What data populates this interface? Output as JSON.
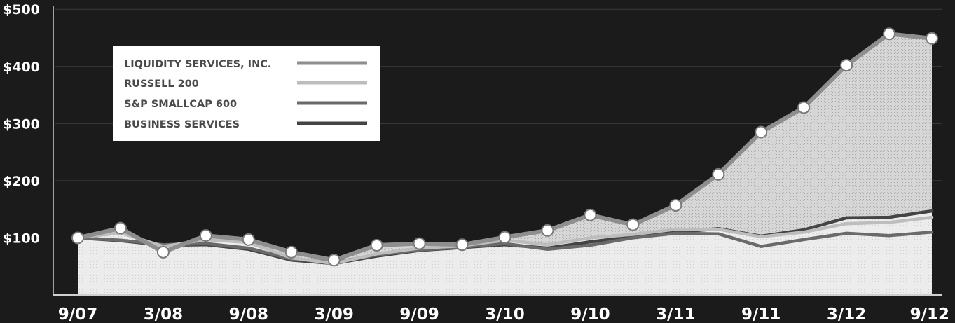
{
  "chart_data": {
    "type": "line",
    "x": [
      "9/07",
      "12/07",
      "3/08",
      "6/08",
      "9/08",
      "12/08",
      "3/09",
      "6/09",
      "9/09",
      "12/09",
      "3/10",
      "6/10",
      "9/10",
      "12/10",
      "3/11",
      "6/11",
      "9/11",
      "12/11",
      "3/12",
      "6/12",
      "9/12"
    ],
    "x_tick_labels": [
      "9/07",
      "3/08",
      "9/08",
      "3/09",
      "9/09",
      "3/10",
      "9/10",
      "3/11",
      "9/11",
      "3/12",
      "9/12"
    ],
    "y_tick_labels": [
      "$100",
      "$200",
      "$300",
      "$400",
      "$500"
    ],
    "ylim": [
      0,
      520
    ],
    "grid": true,
    "legend_position": "top-left",
    "series": [
      {
        "name": "LIQUIDITY SERVICES, INC.",
        "color": "#8e8e8e",
        "markers": true,
        "values": [
          100,
          117,
          75,
          104,
          97,
          75,
          61,
          87,
          90,
          88,
          101,
          113,
          140,
          123,
          157,
          211,
          285,
          328,
          402,
          457,
          449
        ]
      },
      {
        "name": "RUSSELL 200",
        "color": "#bdbdbd",
        "markers": false,
        "values": [
          100,
          109,
          85,
          97,
          92,
          65,
          55,
          72,
          82,
          86,
          96,
          88,
          100,
          106,
          115,
          115,
          102,
          110,
          125,
          127,
          136
        ]
      },
      {
        "name": "S&P SMALLCAP 600",
        "color": "#6a6a6a",
        "markers": false,
        "values": [
          100,
          96,
          88,
          90,
          82,
          63,
          57,
          70,
          79,
          84,
          90,
          80,
          87,
          100,
          108,
          107,
          85,
          97,
          108,
          104,
          110
        ]
      },
      {
        "name": "BUSINESS SERVICES",
        "color": "#444444",
        "markers": false,
        "values": [
          100,
          95,
          87,
          88,
          80,
          61,
          55,
          68,
          78,
          83,
          88,
          82,
          93,
          102,
          110,
          116,
          103,
          114,
          135,
          136,
          147
        ]
      }
    ]
  }
}
